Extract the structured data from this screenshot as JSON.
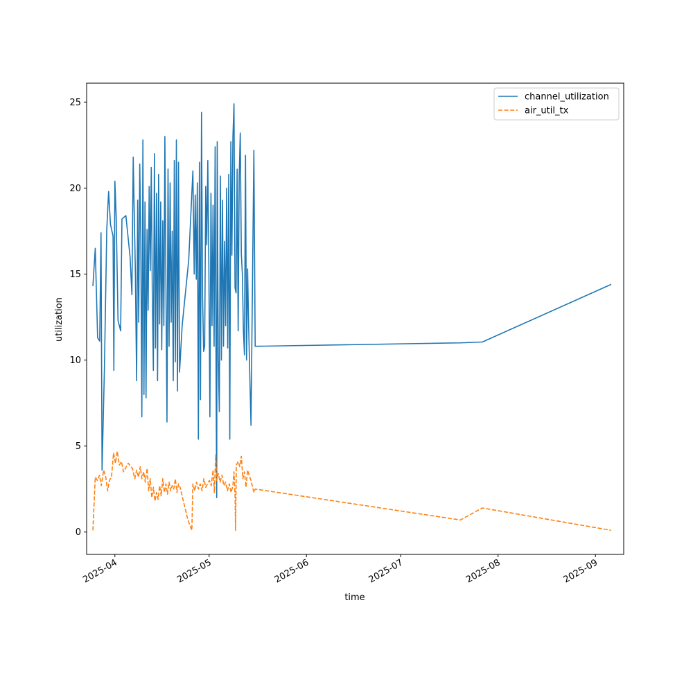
{
  "chart_data": {
    "type": "line",
    "title": "",
    "xlabel": "time",
    "ylabel": "utilization",
    "x_ticks": [
      "2025-04",
      "2025-05",
      "2025-06",
      "2025-07",
      "2025-08",
      "2025-09"
    ],
    "y_ticks": [
      "0",
      "5",
      "10",
      "15",
      "20",
      "25"
    ],
    "xlim": [
      "2025-03-23",
      "2025-09-10"
    ],
    "ylim": [
      -1.3,
      26.1
    ],
    "grid": false,
    "legend_position": "top-right",
    "series": [
      {
        "name": "channel_utilization",
        "color": "#1f77b4",
        "dash": "solid",
        "points": [
          [
            "2025-03-25T00:00",
            14.3
          ],
          [
            "2025-03-25T18:00",
            16.5
          ],
          [
            "2025-03-26T12:00",
            11.3
          ],
          [
            "2025-03-27T04:00",
            11.1
          ],
          [
            "2025-03-27T14:00",
            17.4
          ],
          [
            "2025-03-27T22:00",
            3.6
          ],
          [
            "2025-03-28T16:00",
            9.5
          ],
          [
            "2025-03-29T10:00",
            17.6
          ],
          [
            "2025-03-30T00:00",
            19.8
          ],
          [
            "2025-03-30T14:00",
            17.9
          ],
          [
            "2025-03-31T10:00",
            17.2
          ],
          [
            "2025-03-31T16:00",
            9.4
          ],
          [
            "2025-04-01T00:00",
            20.4
          ],
          [
            "2025-04-01T10:00",
            18.3
          ],
          [
            "2025-04-02T00:00",
            12.3
          ],
          [
            "2025-04-02T20:00",
            11.7
          ],
          [
            "2025-04-03T06:00",
            18.2
          ],
          [
            "2025-04-04T12:00",
            18.4
          ],
          [
            "2025-04-05T20:00",
            16.0
          ],
          [
            "2025-04-06T10:00",
            13.8
          ],
          [
            "2025-04-06T20:00",
            21.8
          ],
          [
            "2025-04-07T12:00",
            15.3
          ],
          [
            "2025-04-07T22:00",
            8.8
          ],
          [
            "2025-04-08T06:00",
            19.3
          ],
          [
            "2025-04-08T14:00",
            12.2
          ],
          [
            "2025-04-08T22:00",
            21.4
          ],
          [
            "2025-04-09T06:00",
            17.0
          ],
          [
            "2025-04-09T14:00",
            6.7
          ],
          [
            "2025-04-09T22:00",
            22.8
          ],
          [
            "2025-04-10T06:00",
            8.0
          ],
          [
            "2025-04-10T14:00",
            19.2
          ],
          [
            "2025-04-10T22:00",
            7.8
          ],
          [
            "2025-04-11T06:00",
            17.6
          ],
          [
            "2025-04-11T14:00",
            12.9
          ],
          [
            "2025-04-11T22:00",
            20.1
          ],
          [
            "2025-04-12T06:00",
            15.2
          ],
          [
            "2025-04-12T14:00",
            21.2
          ],
          [
            "2025-04-12T22:00",
            13.8
          ],
          [
            "2025-04-13T06:00",
            9.4
          ],
          [
            "2025-04-13T14:00",
            22.0
          ],
          [
            "2025-04-13T22:00",
            10.7
          ],
          [
            "2025-04-14T06:00",
            19.7
          ],
          [
            "2025-04-14T14:00",
            8.8
          ],
          [
            "2025-04-14T22:00",
            20.8
          ],
          [
            "2025-04-15T06:00",
            12.1
          ],
          [
            "2025-04-15T14:00",
            19.2
          ],
          [
            "2025-04-15T22:00",
            10.6
          ],
          [
            "2025-04-16T06:00",
            18.1
          ],
          [
            "2025-04-16T14:00",
            12.0
          ],
          [
            "2025-04-16T22:00",
            23.0
          ],
          [
            "2025-04-17T06:00",
            14.4
          ],
          [
            "2025-04-17T14:00",
            6.4
          ],
          [
            "2025-04-17T22:00",
            21.1
          ],
          [
            "2025-04-18T06:00",
            10.8
          ],
          [
            "2025-04-18T14:00",
            20.3
          ],
          [
            "2025-04-18T22:00",
            12.2
          ],
          [
            "2025-04-19T06:00",
            17.5
          ],
          [
            "2025-04-19T14:00",
            8.8
          ],
          [
            "2025-04-19T22:00",
            21.6
          ],
          [
            "2025-04-20T06:00",
            9.9
          ],
          [
            "2025-04-20T14:00",
            22.8
          ],
          [
            "2025-04-20T22:00",
            8.2
          ],
          [
            "2025-04-21T06:00",
            21.5
          ],
          [
            "2025-04-21T14:00",
            9.3
          ],
          [
            "2025-04-22T10:00",
            12.0
          ],
          [
            "2025-04-24T12:00",
            15.8
          ],
          [
            "2025-04-25T20:00",
            21.0
          ],
          [
            "2025-04-26T06:00",
            15.0
          ],
          [
            "2025-04-26T14:00",
            19.6
          ],
          [
            "2025-04-26T22:00",
            14.7
          ],
          [
            "2025-04-27T06:00",
            20.3
          ],
          [
            "2025-04-27T14:00",
            5.4
          ],
          [
            "2025-04-27T22:00",
            21.5
          ],
          [
            "2025-04-28T06:00",
            7.7
          ],
          [
            "2025-04-28T14:00",
            24.4
          ],
          [
            "2025-04-28T22:00",
            13.7
          ],
          [
            "2025-04-29T06:00",
            10.5
          ],
          [
            "2025-04-29T14:00",
            10.8
          ],
          [
            "2025-04-29T22:00",
            20.1
          ],
          [
            "2025-04-30T06:00",
            16.7
          ],
          [
            "2025-04-30T14:00",
            21.6
          ],
          [
            "2025-04-30T22:00",
            15.5
          ],
          [
            "2025-05-01T06:00",
            6.7
          ],
          [
            "2025-05-01T14:00",
            19.7
          ],
          [
            "2025-05-01T22:00",
            12.0
          ],
          [
            "2025-05-02T06:00",
            19.0
          ],
          [
            "2025-05-02T14:00",
            10.8
          ],
          [
            "2025-05-02T22:00",
            22.4
          ],
          [
            "2025-05-03T06:00",
            7.7
          ],
          [
            "2025-05-03T10:00",
            2.0
          ],
          [
            "2025-05-03T14:00",
            22.7
          ],
          [
            "2025-05-03T22:00",
            10.2
          ],
          [
            "2025-05-04T06:00",
            7.0
          ],
          [
            "2025-05-04T14:00",
            20.7
          ],
          [
            "2025-05-04T22:00",
            10.0
          ],
          [
            "2025-05-05T06:00",
            19.3
          ],
          [
            "2025-05-05T14:00",
            10.8
          ],
          [
            "2025-05-05T22:00",
            16.9
          ],
          [
            "2025-05-06T06:00",
            12.0
          ],
          [
            "2025-05-06T14:00",
            20.0
          ],
          [
            "2025-05-06T22:00",
            10.7
          ],
          [
            "2025-05-07T06:00",
            20.8
          ],
          [
            "2025-05-07T14:00",
            5.4
          ],
          [
            "2025-05-07T22:00",
            22.7
          ],
          [
            "2025-05-08T06:00",
            16.1
          ],
          [
            "2025-05-08T14:00",
            23.0
          ],
          [
            "2025-05-08T22:00",
            24.9
          ],
          [
            "2025-05-09T06:00",
            14.2
          ],
          [
            "2025-05-09T14:00",
            13.9
          ],
          [
            "2025-05-09T22:00",
            21.1
          ],
          [
            "2025-05-10T06:00",
            11.7
          ],
          [
            "2025-05-10T14:00",
            20.8
          ],
          [
            "2025-05-10T22:00",
            23.2
          ],
          [
            "2025-05-11T06:00",
            16.2
          ],
          [
            "2025-05-11T14:00",
            15.0
          ],
          [
            "2025-05-11T22:00",
            11.7
          ],
          [
            "2025-05-12T06:00",
            10.3
          ],
          [
            "2025-05-12T14:00",
            21.9
          ],
          [
            "2025-05-12T22:00",
            10.0
          ],
          [
            "2025-05-13T06:00",
            15.3
          ],
          [
            "2025-05-13T14:00",
            12.0
          ],
          [
            "2025-05-14T08:00",
            6.2
          ],
          [
            "2025-05-15T06:00",
            22.2
          ],
          [
            "2025-05-15T16:00",
            10.8
          ],
          [
            "2025-07-20T00:00",
            11.0
          ],
          [
            "2025-07-27T00:00",
            11.05
          ],
          [
            "2025-09-06T00:00",
            14.4
          ]
        ]
      },
      {
        "name": "air_util_tx",
        "color": "#ff7f0e",
        "dash": "dashed",
        "points": [
          [
            "2025-03-25T00:00",
            0.1
          ],
          [
            "2025-03-25T18:00",
            3.2
          ],
          [
            "2025-03-26T10:00",
            3.0
          ],
          [
            "2025-03-27T02:00",
            3.3
          ],
          [
            "2025-03-27T16:00",
            2.7
          ],
          [
            "2025-03-28T10:00",
            3.6
          ],
          [
            "2025-03-29T02:00",
            3.2
          ],
          [
            "2025-03-29T16:00",
            2.4
          ],
          [
            "2025-03-30T06:00",
            3.0
          ],
          [
            "2025-03-30T22:00",
            3.2
          ],
          [
            "2025-03-31T14:00",
            4.6
          ],
          [
            "2025-04-01T04:00",
            4.0
          ],
          [
            "2025-04-01T18:00",
            4.7
          ],
          [
            "2025-04-02T10:00",
            3.9
          ],
          [
            "2025-04-03T02:00",
            4.1
          ],
          [
            "2025-04-03T18:00",
            3.5
          ],
          [
            "2025-04-05T06:00",
            4.0
          ],
          [
            "2025-04-06T14:00",
            3.7
          ],
          [
            "2025-04-07T08:00",
            3.1
          ],
          [
            "2025-04-07T22:00",
            3.6
          ],
          [
            "2025-04-08T12:00",
            3.2
          ],
          [
            "2025-04-09T02:00",
            3.8
          ],
          [
            "2025-04-09T14:00",
            3.1
          ],
          [
            "2025-04-10T04:00",
            3.5
          ],
          [
            "2025-04-10T16:00",
            2.9
          ],
          [
            "2025-04-11T06:00",
            3.7
          ],
          [
            "2025-04-11T18:00",
            2.4
          ],
          [
            "2025-04-12T06:00",
            3.1
          ],
          [
            "2025-04-12T18:00",
            2.0
          ],
          [
            "2025-04-13T06:00",
            2.6
          ],
          [
            "2025-04-13T18:00",
            1.8
          ],
          [
            "2025-04-14T06:00",
            2.3
          ],
          [
            "2025-04-14T18:00",
            1.9
          ],
          [
            "2025-04-15T06:00",
            2.7
          ],
          [
            "2025-04-15T18:00",
            2.1
          ],
          [
            "2025-04-16T06:00",
            3.1
          ],
          [
            "2025-04-16T18:00",
            2.3
          ],
          [
            "2025-04-17T06:00",
            2.8
          ],
          [
            "2025-04-17T18:00",
            2.2
          ],
          [
            "2025-04-18T06:00",
            2.9
          ],
          [
            "2025-04-18T18:00",
            2.4
          ],
          [
            "2025-04-19T06:00",
            2.7
          ],
          [
            "2025-04-19T18:00",
            2.5
          ],
          [
            "2025-04-20T06:00",
            3.1
          ],
          [
            "2025-04-20T18:00",
            2.3
          ],
          [
            "2025-04-21T06:00",
            2.8
          ],
          [
            "2025-04-21T18:00",
            2.6
          ],
          [
            "2025-04-24T06:00",
            0.7
          ],
          [
            "2025-04-25T12:00",
            0.1
          ],
          [
            "2025-04-25T20:00",
            2.8
          ],
          [
            "2025-04-26T10:00",
            2.4
          ],
          [
            "2025-04-27T00:00",
            2.9
          ],
          [
            "2025-04-27T14:00",
            2.5
          ],
          [
            "2025-04-28T04:00",
            2.8
          ],
          [
            "2025-04-28T18:00",
            2.4
          ],
          [
            "2025-04-29T08:00",
            3.1
          ],
          [
            "2025-04-29T22:00",
            2.6
          ],
          [
            "2025-04-30T12:00",
            2.8
          ],
          [
            "2025-05-01T02:00",
            3.0
          ],
          [
            "2025-05-01T16:00",
            2.7
          ],
          [
            "2025-05-02T06:00",
            3.6
          ],
          [
            "2025-05-02T16:00",
            2.3
          ],
          [
            "2025-05-03T02:00",
            4.5
          ],
          [
            "2025-05-03T10:00",
            3.0
          ],
          [
            "2025-05-03T22:00",
            3.4
          ],
          [
            "2025-05-04T12:00",
            2.9
          ],
          [
            "2025-05-05T02:00",
            3.3
          ],
          [
            "2025-05-05T16:00",
            2.7
          ],
          [
            "2025-05-06T06:00",
            2.9
          ],
          [
            "2025-05-06T20:00",
            2.4
          ],
          [
            "2025-05-07T10:00",
            2.8
          ],
          [
            "2025-05-08T00:00",
            2.3
          ],
          [
            "2025-05-08T14:00",
            2.7
          ],
          [
            "2025-05-08T22:00",
            3.5
          ],
          [
            "2025-05-09T06:00",
            2.2
          ],
          [
            "2025-05-09T10:00",
            0.1
          ],
          [
            "2025-05-09T16:00",
            3.9
          ],
          [
            "2025-05-10T06:00",
            4.1
          ],
          [
            "2025-05-10T18:00",
            3.8
          ],
          [
            "2025-05-11T06:00",
            4.4
          ],
          [
            "2025-05-11T18:00",
            3.1
          ],
          [
            "2025-05-12T06:00",
            3.5
          ],
          [
            "2025-05-12T18:00",
            2.6
          ],
          [
            "2025-05-13T06:00",
            3.6
          ],
          [
            "2025-05-13T18:00",
            3.3
          ],
          [
            "2025-05-14T08:00",
            3.0
          ],
          [
            "2025-05-15T06:00",
            2.3
          ],
          [
            "2025-05-15T16:00",
            2.5
          ],
          [
            "2025-07-20T00:00",
            0.7
          ],
          [
            "2025-07-27T00:00",
            1.4
          ],
          [
            "2025-09-06T00:00",
            0.1
          ]
        ]
      }
    ]
  }
}
